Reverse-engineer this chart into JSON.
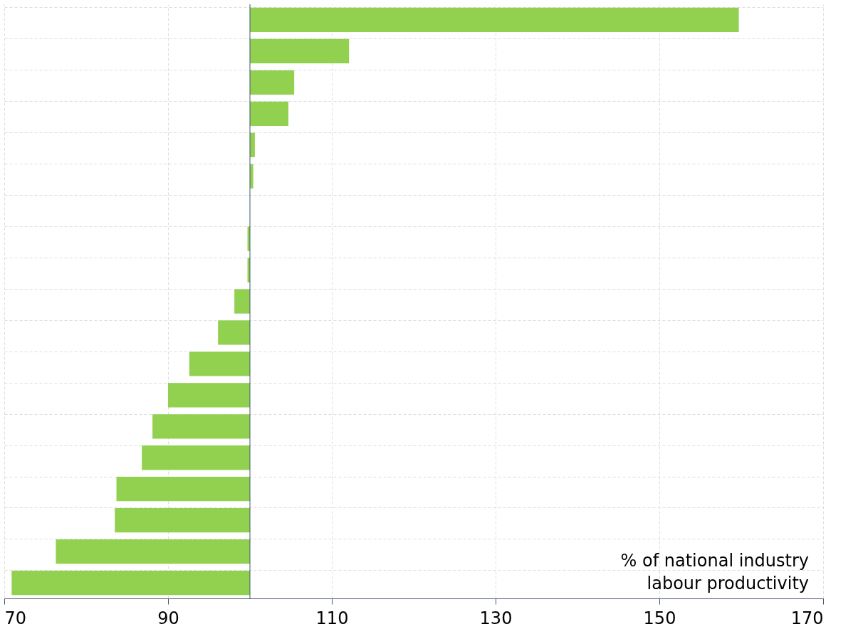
{
  "chart_data": {
    "type": "bar",
    "orientation": "horizontal",
    "categories": [
      null,
      null,
      null,
      null,
      null,
      null,
      null,
      null,
      null,
      null,
      null,
      null,
      null,
      null,
      null,
      null,
      null,
      null,
      null
    ],
    "base": [
      100,
      100,
      100,
      100,
      100,
      100,
      null,
      100,
      100,
      100,
      100,
      100,
      100,
      100,
      100,
      100,
      100,
      100,
      100
    ],
    "values": [
      59.7,
      12.1,
      5.4,
      4.7,
      0.6,
      0.4,
      null,
      -0.3,
      -0.3,
      -1.9,
      -3.9,
      -7.4,
      -10.0,
      -11.9,
      -13.2,
      -16.3,
      -16.5,
      -23.7,
      -29.1
    ],
    "color": "#92d050",
    "xlim": [
      70,
      170
    ],
    "xticks": [
      70,
      90,
      110,
      130,
      150,
      170
    ],
    "grid": true,
    "ref_lines": [
      {
        "axis": "x",
        "value": 100,
        "color": "#44546a"
      }
    ],
    "annotations": [
      "% of national industry\nlabour productivity"
    ]
  }
}
